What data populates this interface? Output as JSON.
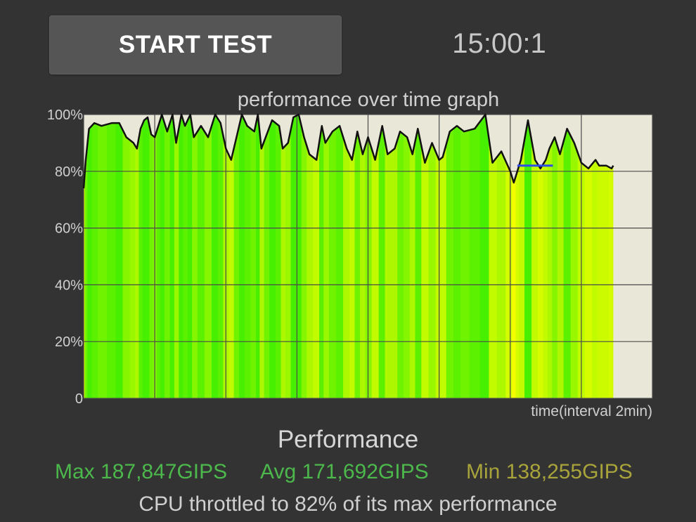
{
  "header": {
    "start_label": "START TEST",
    "timer": "15:00:1"
  },
  "chart_data": {
    "type": "area",
    "title": "performance over time graph",
    "xlabel": "time(interval 2min)",
    "ylabel": "",
    "ylim": [
      0,
      100
    ],
    "y_ticks": [
      "0",
      "20%",
      "40%",
      "60%",
      "80%",
      "100%"
    ],
    "x_range_minutes": [
      0,
      16
    ],
    "x_grid_interval_minutes": 2,
    "test_duration_minutes": 15,
    "grid": true,
    "series": [
      {
        "x": [
          0,
          0.06,
          0.15,
          0.3,
          0.5,
          0.8,
          1.0,
          1.2,
          1.4,
          1.5,
          1.6,
          1.7,
          1.8,
          1.9,
          2.0,
          2.1,
          2.2,
          2.35,
          2.5,
          2.6,
          2.75,
          2.85,
          3.0,
          3.1,
          3.3,
          3.5,
          3.7,
          3.85,
          4.0,
          4.15,
          4.3,
          4.45,
          4.6,
          4.8,
          4.9,
          5.0,
          5.15,
          5.3,
          5.5,
          5.6,
          5.75,
          5.9,
          6.05,
          6.2,
          6.35,
          6.55,
          6.7,
          6.8,
          7.0,
          7.2,
          7.4,
          7.55,
          7.7,
          7.85,
          8.0,
          8.2,
          8.4,
          8.55,
          8.75,
          8.9,
          9.1,
          9.25,
          9.4,
          9.6,
          9.8,
          10.0,
          10.1,
          10.3,
          10.5,
          10.7,
          11.0,
          11.3,
          11.5,
          11.75,
          12.0,
          12.1,
          12.2,
          12.3,
          12.5,
          12.7,
          12.85,
          13.0,
          13.1,
          13.25,
          13.4,
          13.6,
          13.8,
          14.0,
          14.2,
          14.4,
          14.5,
          14.6,
          14.7,
          14.85,
          14.9
        ],
        "values": [
          74,
          84,
          95,
          97,
          96,
          97,
          97,
          92,
          90,
          88,
          95,
          98,
          99,
          93,
          92,
          96,
          100,
          94,
          100,
          90,
          100,
          96,
          100,
          92,
          96,
          92,
          100,
          97,
          88,
          84,
          92,
          100,
          96,
          94,
          100,
          88,
          93,
          98,
          96,
          88,
          90,
          99,
          100,
          92,
          86,
          84,
          96,
          90,
          94,
          96,
          88,
          84,
          94,
          86,
          92,
          84,
          96,
          86,
          88,
          94,
          92,
          86,
          95,
          83,
          90,
          84,
          85,
          94,
          96,
          94,
          95,
          100,
          83,
          87,
          80,
          76,
          80,
          84,
          98,
          84,
          81,
          84,
          88,
          92,
          86,
          95,
          90,
          83,
          81,
          84,
          82,
          82,
          82,
          81,
          82
        ],
        "background_intensity": [
          0.9,
          0.3,
          0.1,
          0.2,
          0.3,
          0.2,
          0.1,
          0.4,
          0.5,
          0.6,
          0.2,
          0.1,
          0.1,
          0.3,
          0.4,
          0.2,
          0.1,
          0.3,
          0.1,
          0.5,
          0.1,
          0.2,
          0.1,
          0.4,
          0.2,
          0.4,
          0.1,
          0.2,
          0.6,
          0.7,
          0.3,
          0.1,
          0.2,
          0.3,
          0.1,
          0.6,
          0.3,
          0.1,
          0.2,
          0.6,
          0.5,
          0.1,
          0.1,
          0.4,
          0.6,
          0.7,
          0.2,
          0.5,
          0.3,
          0.2,
          0.6,
          0.7,
          0.3,
          0.6,
          0.4,
          0.7,
          0.2,
          0.6,
          0.6,
          0.3,
          0.4,
          0.6,
          0.2,
          0.7,
          0.5,
          0.7,
          0.7,
          0.3,
          0.2,
          0.3,
          0.2,
          0.1,
          0.7,
          0.6,
          0.8,
          0.95,
          0.8,
          0.7,
          0.1,
          0.7,
          0.8,
          0.7,
          0.6,
          0.4,
          0.6,
          0.2,
          0.5,
          0.7,
          0.8,
          0.7,
          0.75,
          0.75,
          0.75,
          0.8,
          0.75
        ]
      }
    ],
    "reference_segment": {
      "x": [
        12.2,
        13.2
      ],
      "value": 82,
      "color": "#2f4ee8"
    },
    "colors": {
      "plot_background": "#e9e8d8",
      "grid": "#4a4a4a",
      "line": "#111111",
      "fill_high": "#33ee00",
      "fill_low": "#ffff00"
    }
  },
  "performance": {
    "title": "Performance",
    "max": "Max 187,847GIPS",
    "avg": "Avg 171,692GIPS",
    "min": "Min 138,255GIPS",
    "throttle": "CPU throttled to 82% of its max performance",
    "max_color": "#4cb84c",
    "avg_color": "#4cb84c",
    "min_color": "#a8a33a"
  }
}
